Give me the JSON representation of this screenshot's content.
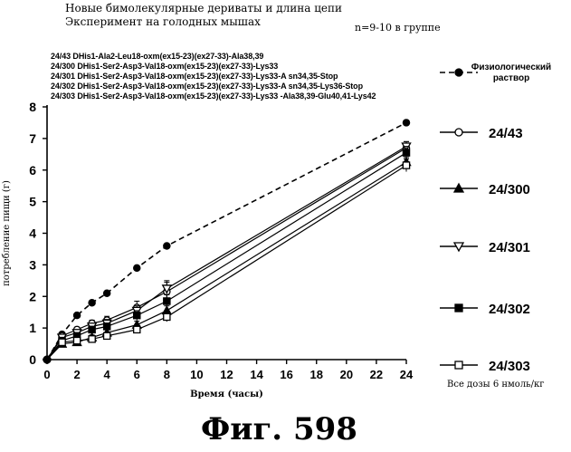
{
  "header": {
    "title_line1": "Новые бимолекулярные дериваты и длина цепи",
    "title_line2": "Эксперимент на голодных мышах",
    "group_note": "n=9-10 в группе"
  },
  "descriptions": [
    "24/43 DHis1-Ala2-Leu18-oxm(ex15-23)(ex27-33)-Ala38,39",
    "24/300 DHis1-Ser2-Asp3-Val18-oxm(ex15-23)(ex27-33)-Lys33",
    "24/301 DHis1-Ser2-Asp3-Val18-oxm(ex15-23)(ex27-33)-Lys33-A sn34,35-Stop",
    "24/302 DHis1-Ser2-Asp3-Val18-oxm(ex15-23)(ex27-33)-Lys33-A sn34,35-Lys36-Stop",
    "24/303 DHis1-Ser2-Asp3-Val18-oxm(ex15-23)(ex27-33)-Lys33 -Ala38,39-Glu40,41-Lys42"
  ],
  "dose_note": "Все дозы 6 нмоль/кг",
  "figure_caption": "Фиг.  598",
  "colors": {
    "ink": "#000000",
    "background": "#ffffff"
  },
  "chart_data": {
    "type": "line",
    "xlabel": "Время (часы)",
    "ylabel": "потребление пищи (г)",
    "xlim": [
      0,
      24
    ],
    "ylim": [
      0,
      8
    ],
    "xticks": [
      0,
      2,
      4,
      6,
      8,
      10,
      12,
      14,
      16,
      18,
      20,
      22,
      24
    ],
    "yticks": [
      0,
      1,
      2,
      3,
      4,
      5,
      6,
      7,
      8
    ],
    "grid": false,
    "legend_position": "right",
    "series": [
      {
        "name": "Физиологический раствор",
        "marker": "filled-circle",
        "dashed": true,
        "x": [
          0,
          1,
          2,
          3,
          4,
          6,
          8,
          24
        ],
        "y": [
          0,
          0.8,
          1.4,
          1.8,
          2.1,
          2.9,
          3.6,
          7.5
        ],
        "err": []
      },
      {
        "name": "24/43",
        "marker": "open-circle",
        "dashed": false,
        "x": [
          0,
          1,
          2,
          3,
          4,
          6,
          8,
          24
        ],
        "y": [
          0,
          0.75,
          0.95,
          1.15,
          1.25,
          1.65,
          2.15,
          6.7
        ],
        "err": [
          0,
          0.05,
          0.08,
          0.1,
          0.12,
          0.2,
          0.3,
          0.2
        ]
      },
      {
        "name": "24/300",
        "marker": "filled-triangle",
        "dashed": false,
        "x": [
          0,
          1,
          2,
          3,
          4,
          6,
          8,
          24
        ],
        "y": [
          0,
          0.5,
          0.55,
          0.7,
          0.85,
          1.1,
          1.55,
          6.25
        ],
        "err": [
          0,
          0.05,
          0.05,
          0.08,
          0.1,
          0.12,
          0.15,
          0.15
        ]
      },
      {
        "name": "24/301",
        "marker": "open-triangle-down",
        "dashed": false,
        "x": [
          0,
          1,
          2,
          3,
          4,
          6,
          8,
          24
        ],
        "y": [
          0,
          0.7,
          0.85,
          1.05,
          1.15,
          1.55,
          2.25,
          6.75
        ],
        "err": [
          0,
          0.05,
          0.08,
          0.1,
          0.12,
          0.15,
          0.25,
          0.15
        ]
      },
      {
        "name": "24/302",
        "marker": "filled-square",
        "dashed": false,
        "x": [
          0,
          1,
          2,
          3,
          4,
          6,
          8,
          24
        ],
        "y": [
          0,
          0.6,
          0.75,
          0.95,
          1.05,
          1.4,
          1.85,
          6.55
        ],
        "err": [
          0,
          0.05,
          0.08,
          0.1,
          0.1,
          0.15,
          0.2,
          0.2
        ]
      },
      {
        "name": "24/303",
        "marker": "open-square",
        "dashed": false,
        "x": [
          0,
          1,
          2,
          3,
          4,
          6,
          8,
          24
        ],
        "y": [
          0,
          0.55,
          0.6,
          0.65,
          0.75,
          0.95,
          1.35,
          6.15
        ],
        "err": [
          0,
          0.05,
          0.05,
          0.05,
          0.08,
          0.1,
          0.15,
          0.2
        ]
      }
    ]
  }
}
